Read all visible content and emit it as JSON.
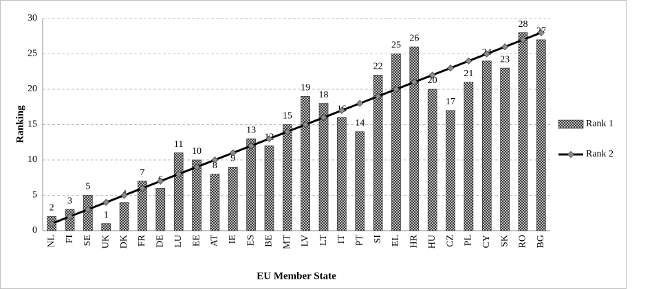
{
  "chart_data": {
    "type": "bar",
    "x_label": "EU Member State",
    "y_label": "Ranking",
    "categories": [
      "NL",
      "FI",
      "SE",
      "UK",
      "DK",
      "FR",
      "DE",
      "LU",
      "EE",
      "AT",
      "IE",
      "ES",
      "BE",
      "MT",
      "LV",
      "LT",
      "IT",
      "PT",
      "SI",
      "EL",
      "HR",
      "HU",
      "CZ",
      "PL",
      "CY",
      "SK",
      "RO",
      "BG"
    ],
    "series": [
      {
        "name": "Rank 1",
        "type": "bar",
        "color": "#3a3a3a",
        "values": [
          2,
          3,
          5,
          1,
          4,
          7,
          6,
          11,
          10,
          8,
          9,
          13,
          12,
          15,
          19,
          18,
          16,
          14,
          22,
          25,
          26,
          20,
          17,
          21,
          24,
          23,
          28,
          27
        ]
      },
      {
        "name": "Rank 2",
        "type": "line",
        "color": "#000000",
        "marker_color": "#8c8c8c",
        "values": [
          1,
          2,
          3,
          4,
          5,
          6,
          7,
          8,
          9,
          10,
          11,
          12,
          13,
          14,
          15,
          16,
          17,
          18,
          19,
          20,
          21,
          22,
          23,
          24,
          25,
          26,
          27,
          28
        ]
      }
    ],
    "ylim": [
      0,
      30
    ],
    "yticks": [
      0,
      5,
      10,
      15,
      20,
      25,
      30
    ],
    "grid": true,
    "legend": "right"
  }
}
